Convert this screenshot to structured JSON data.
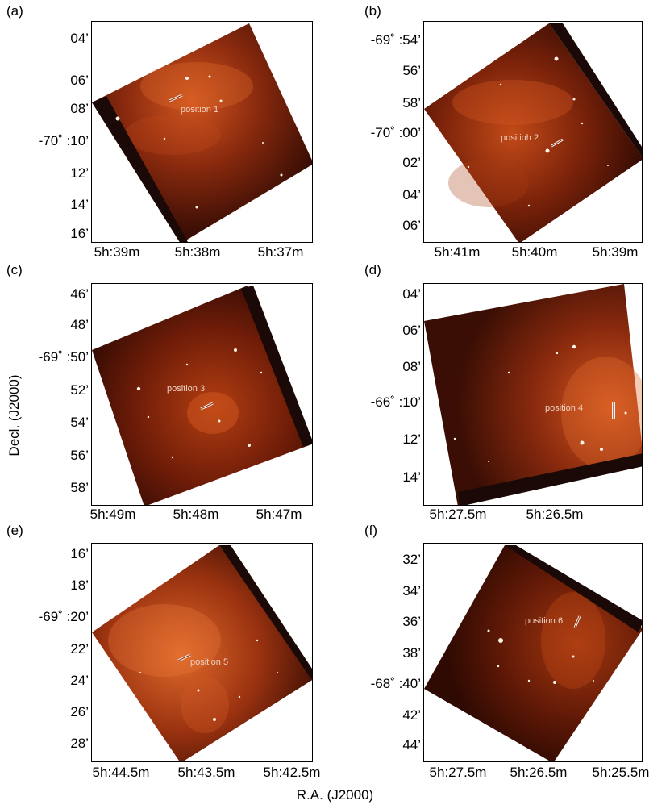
{
  "axes": {
    "x_title": "R.A. (J2000)",
    "y_title": "Decl. (J2000)"
  },
  "colors": {
    "background": "#000000",
    "emission_low": "#5a1a0a",
    "emission_high": "#ff8a4a",
    "star": "#fff4e8",
    "slit": "#f4f4f4"
  },
  "panels": [
    {
      "label": "(a)",
      "annotation": "position 1",
      "yticks": [
        "04’",
        "06’",
        "08’",
        "-70˚ :10’",
        "12’",
        "14’",
        "16’"
      ],
      "xticks": [
        "5h:39m",
        "5h:38m",
        "5h:37m"
      ]
    },
    {
      "label": "(b)",
      "annotation": "positioh 2",
      "yticks": [
        "-69˚ :54’",
        "56’",
        "58’",
        "-70˚ :00’",
        "02’",
        "04’",
        "06’"
      ],
      "xticks": [
        "5h:41m",
        "5h:40m",
        "5h:39m"
      ]
    },
    {
      "label": "(c)",
      "annotation": "position 3",
      "yticks": [
        "46’",
        "48’",
        "-69˚ :50’",
        "52’",
        "54’",
        "56’",
        "58’"
      ],
      "xticks": [
        "5h:49m",
        "5h:48m",
        "5h:47m"
      ]
    },
    {
      "label": "(d)",
      "annotation": "position 4",
      "yticks": [
        "04’",
        "06’",
        "08’",
        "-66˚ :10’",
        "12’",
        "14’"
      ],
      "xticks": [
        "5h:27.5m",
        "5h:26.5m"
      ]
    },
    {
      "label": "(e)",
      "annotation": "position 5",
      "yticks": [
        "16’",
        "18’",
        "-69˚ :20’",
        "22’",
        "24’",
        "26’",
        "28’"
      ],
      "xticks": [
        "5h:44.5m",
        "5h:43.5m",
        "5h:42.5m"
      ]
    },
    {
      "label": "(f)",
      "annotation": "position 6",
      "yticks": [
        "32’",
        "34’",
        "36’",
        "38’",
        "-68˚ :40’",
        "42’",
        "44’"
      ],
      "xticks": [
        "5h:27.5m",
        "5h:26.5m",
        "5h:25.5m"
      ]
    }
  ]
}
